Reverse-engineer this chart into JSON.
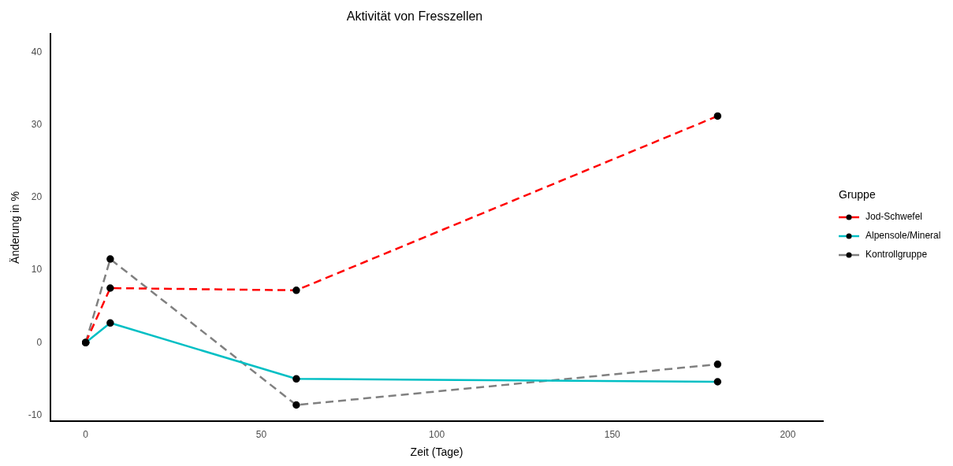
{
  "chart_data": {
    "type": "line",
    "title": "Aktivität von Fresszellen",
    "xlabel": "Zeit (Tage)",
    "ylabel": "Änderung in %",
    "legend_title": "Gruppe",
    "legend": "right",
    "grid": false,
    "marker": "circle",
    "x": [
      0,
      7,
      60,
      180
    ],
    "xlim": [
      -10,
      210
    ],
    "xticks": [
      0,
      50,
      100,
      150,
      200
    ],
    "ylim": [
      -10.8,
      42.5
    ],
    "yticks": [
      -10,
      0,
      10,
      20,
      30,
      40
    ],
    "series": [
      {
        "name": "Jod-Schwefel",
        "color": "#ff0000",
        "line_style": "dashed",
        "values": [
          0,
          7.5,
          7.2,
          31.2
        ]
      },
      {
        "name": "Alpensole/Mineral",
        "color": "#00bfc4",
        "line_style": "solid",
        "values": [
          0,
          2.7,
          -5.0,
          -5.4
        ]
      },
      {
        "name": "Kontrollgruppe",
        "color": "#808080",
        "line_style": "dashed",
        "values": [
          0,
          11.5,
          -8.6,
          -3.0
        ]
      }
    ]
  }
}
